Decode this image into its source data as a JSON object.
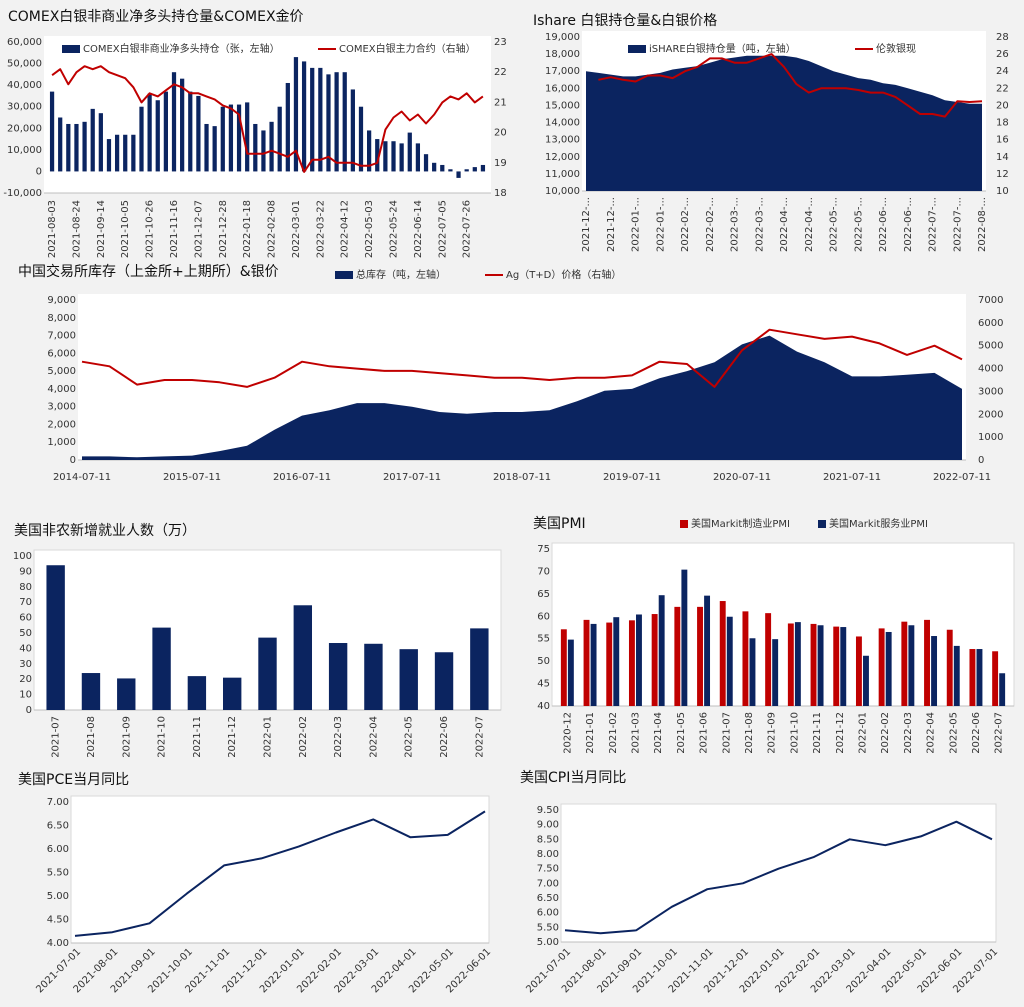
{
  "chart_data": [
    {
      "type": "combo",
      "title": "COMEX白银非商业净多头持仓量&COMEX金价",
      "categories": [
        "2021-08-03",
        null,
        null,
        "2021-08-24",
        null,
        null,
        "2021-09-14",
        null,
        null,
        "2021-10-05",
        null,
        null,
        "2021-10-26",
        null,
        null,
        "2021-11-16",
        null,
        null,
        "2021-12-07",
        null,
        null,
        "2021-12-28",
        null,
        null,
        "2022-01-18",
        null,
        null,
        "2022-02-08",
        null,
        null,
        "2022-03-01",
        null,
        null,
        "2022-03-22",
        null,
        null,
        "2022-04-12",
        null,
        null,
        "2022-05-03",
        null,
        null,
        "2022-05-24",
        null,
        null,
        "2022-06-14",
        null,
        null,
        "2022-07-05",
        null,
        null,
        "2022-07-26",
        null,
        null
      ],
      "series": [
        {
          "name": "COMEX白银非商业净多头持仓（张，左轴）",
          "type": "bar",
          "color": "#0b2460",
          "values": [
            37000,
            25000,
            22000,
            22000,
            23000,
            29000,
            27000,
            15000,
            17000,
            17000,
            17000,
            30000,
            36000,
            33000,
            37000,
            46000,
            43000,
            37000,
            35000,
            22000,
            21000,
            30000,
            31000,
            31000,
            32000,
            22000,
            19000,
            23000,
            30000,
            41000,
            53000,
            51000,
            48000,
            48000,
            45000,
            46000,
            46000,
            38000,
            30000,
            19000,
            15000,
            14000,
            14000,
            13000,
            18000,
            13000,
            8000,
            4000,
            3000,
            1000,
            -3000,
            1000,
            2000,
            3000
          ]
        },
        {
          "name": "COMEX白银主力合约（右轴）",
          "type": "line",
          "axis": "y2",
          "color": "#c00000",
          "values": [
            21.9,
            22.1,
            21.6,
            22.0,
            22.2,
            22.1,
            22.2,
            22.0,
            21.9,
            21.8,
            21.5,
            21.0,
            21.3,
            21.2,
            21.4,
            21.6,
            21.5,
            21.3,
            21.3,
            21.2,
            21.1,
            20.9,
            20.8,
            20.6,
            19.3,
            19.3,
            19.3,
            19.4,
            19.3,
            19.2,
            19.4,
            18.7,
            19.1,
            19.1,
            19.2,
            19.0,
            19.0,
            19.0,
            18.9,
            18.9,
            19.0,
            20.1,
            20.5,
            20.7,
            20.4,
            20.6,
            20.3,
            20.6,
            21.0,
            21.2,
            21.1,
            21.3,
            21.0,
            21.2
          ]
        }
      ],
      "ylim": [
        -10000,
        60000
      ],
      "yticks": [
        {
          "value": -10000,
          "label": "-10,000"
        },
        0,
        {
          "value": 10000,
          "label": "10,000"
        },
        {
          "value": 20000,
          "label": "20,000"
        },
        {
          "value": 30000,
          "label": "30,000"
        },
        {
          "value": 40000,
          "label": "40,000"
        },
        {
          "value": 50000,
          "label": "50,000"
        },
        {
          "value": 60000,
          "label": "60,000"
        }
      ],
      "y2lim": [
        18,
        23
      ],
      "y2ticks": [
        18,
        19,
        20,
        21,
        22,
        23
      ]
    },
    {
      "type": "combo",
      "title": "Ishare 白银持仓量&白银价格",
      "categories": [
        "2021-12-...",
        null,
        "2021-12-...",
        null,
        "2022-01-...",
        null,
        "2022-01-...",
        null,
        "2022-02-...",
        null,
        "2022-02-...",
        null,
        "2022-03-...",
        null,
        "2022-03-...",
        null,
        "2022-04-...",
        null,
        "2022-04-...",
        null,
        "2022-05-...",
        null,
        "2022-05-...",
        null,
        "2022-06-...",
        null,
        "2022-06-...",
        null,
        "2022-07-...",
        null,
        "2022-07-...",
        null,
        "2022-08-..."
      ],
      "series": [
        {
          "name": "iSHARE白银持仓量（吨，左轴）",
          "type": "area",
          "color": "#0b2460",
          "values": [
            17000,
            16900,
            16800,
            16700,
            16700,
            16800,
            16900,
            17100,
            17200,
            17300,
            17500,
            17700,
            17800,
            17900,
            17900,
            17900,
            17900,
            17800,
            17600,
            17300,
            17000,
            16800,
            16600,
            16500,
            16300,
            16200,
            16000,
            15800,
            15600,
            15300,
            15200,
            15100,
            15100
          ]
        },
        {
          "name": "伦敦银现",
          "type": "line",
          "axis": "y2",
          "color": "#c00000",
          "values": [
            null,
            23,
            23.3,
            23,
            22.8,
            23.5,
            23.5,
            23.2,
            24,
            24.5,
            25.5,
            25.5,
            25,
            25,
            25.5,
            26,
            24.5,
            22.5,
            21.5,
            22,
            22,
            22,
            21.8,
            21.5,
            21.5,
            21,
            20,
            19,
            19,
            18.7,
            20.5,
            20.4,
            20.5
          ]
        }
      ],
      "ylim": [
        10000,
        19000
      ],
      "yticks": [
        {
          "value": 10000,
          "label": "10,000"
        },
        {
          "value": 11000,
          "label": "11,000"
        },
        {
          "value": 12000,
          "label": "12,000"
        },
        {
          "value": 13000,
          "label": "13,000"
        },
        {
          "value": 14000,
          "label": "14,000"
        },
        {
          "value": 15000,
          "label": "15,000"
        },
        {
          "value": 16000,
          "label": "16,000"
        },
        {
          "value": 17000,
          "label": "17,000"
        },
        {
          "value": 18000,
          "label": "18,000"
        },
        {
          "value": 19000,
          "label": "19,000"
        }
      ],
      "y2lim": [
        10,
        28
      ],
      "y2ticks": [
        10,
        12,
        14,
        16,
        18,
        20,
        22,
        24,
        26,
        28
      ]
    },
    {
      "type": "combo",
      "title": "中国交易所库存（上金所+上期所）&银价",
      "categories": [
        "2014-07-11",
        null,
        null,
        null,
        "2015-07-11",
        null,
        null,
        null,
        "2016-07-11",
        null,
        null,
        null,
        "2017-07-11",
        null,
        null,
        null,
        "2018-07-11",
        null,
        null,
        null,
        "2019-07-11",
        null,
        null,
        null,
        "2020-07-11",
        null,
        null,
        null,
        "2021-07-11",
        null,
        null,
        null,
        "2022-07-11"
      ],
      "series": [
        {
          "name": "总库存（吨，左轴）",
          "type": "area",
          "color": "#0b2460",
          "values": [
            200,
            200,
            150,
            200,
            250,
            500,
            800,
            1700,
            2500,
            2800,
            3200,
            3200,
            3000,
            2700,
            2600,
            2700,
            2700,
            2800,
            3300,
            3900,
            4000,
            4600,
            5000,
            5500,
            6500,
            7000,
            6100,
            5500,
            4700,
            4700,
            4800,
            4900,
            4000
          ]
        },
        {
          "name": "Ag（T+D）价格（右轴）",
          "type": "line",
          "axis": "y2",
          "color": "#c00000",
          "values": [
            4300,
            4100,
            3300,
            3500,
            3500,
            3400,
            3200,
            3600,
            4300,
            4100,
            4000,
            3900,
            3900,
            3800,
            3700,
            3600,
            3600,
            3500,
            3600,
            3600,
            3700,
            4300,
            4200,
            3200,
            4800,
            5700,
            5500,
            5300,
            5400,
            5100,
            4600,
            5000,
            4400
          ]
        }
      ],
      "ylim": [
        0,
        9000
      ],
      "yticks": [
        0,
        {
          "value": 1000,
          "label": "1,000"
        },
        {
          "value": 2000,
          "label": "2,000"
        },
        {
          "value": 3000,
          "label": "3,000"
        },
        {
          "value": 4000,
          "label": "4,000"
        },
        {
          "value": 5000,
          "label": "5,000"
        },
        {
          "value": 6000,
          "label": "6,000"
        },
        {
          "value": 7000,
          "label": "7,000"
        },
        {
          "value": 8000,
          "label": "8,000"
        },
        {
          "value": 9000,
          "label": "9,000"
        }
      ],
      "y2lim": [
        0,
        7000
      ],
      "y2ticks": [
        0,
        1000,
        2000,
        3000,
        4000,
        5000,
        6000,
        7000
      ]
    },
    {
      "type": "bar",
      "title": "美国非农新增就业人数（万）",
      "categories": [
        "2021-07",
        "2021-08",
        "2021-09",
        "2021-10",
        "2021-11",
        "2021-12",
        "2022-01",
        "2022-02",
        "2022-03",
        "2022-04",
        "2022-05",
        "2022-06",
        "2022-07"
      ],
      "values": [
        94,
        24,
        20.5,
        53.5,
        22,
        21,
        47,
        68,
        43.5,
        43,
        39.5,
        37.5,
        53
      ],
      "color": "#0b2460",
      "ylim": [
        0,
        100
      ],
      "yticks": [
        0,
        10,
        20,
        30,
        40,
        50,
        60,
        70,
        80,
        90,
        100
      ]
    },
    {
      "type": "bar",
      "title": "美国PMI",
      "categories": [
        "2020-12",
        "2021-01",
        "2021-02",
        "2021-03",
        "2021-04",
        "2021-05",
        "2021-06",
        "2021-07",
        "2021-08",
        "2021-09",
        "2021-10",
        "2021-11",
        "2021-12",
        "2022-01",
        "2022-02",
        "2022-03",
        "2022-04",
        "2022-05",
        "2022-06",
        "2022-07"
      ],
      "series": [
        {
          "name": "美国Markit制造业PMI",
          "color": "#c00000",
          "values": [
            57.1,
            59.2,
            58.6,
            59.1,
            60.5,
            62.1,
            62.1,
            63.4,
            61.1,
            60.7,
            58.4,
            58.3,
            57.7,
            55.5,
            57.3,
            58.8,
            59.2,
            57.0,
            52.7,
            52.2
          ]
        },
        {
          "name": "美国Markit服务业PMI",
          "color": "#0b2460",
          "values": [
            54.8,
            58.3,
            59.8,
            60.4,
            64.7,
            70.4,
            64.6,
            59.9,
            55.1,
            54.9,
            58.7,
            58.0,
            57.6,
            51.2,
            56.5,
            58.0,
            55.6,
            53.4,
            52.7,
            47.3
          ]
        }
      ],
      "ylim": [
        40,
        75
      ],
      "yticks": [
        40,
        45,
        50,
        55,
        60,
        65,
        70,
        75
      ]
    },
    {
      "type": "line",
      "title": "美国PCE当月同比",
      "categories": [
        "2021-07-01",
        "2021-08-01",
        "2021-09-01",
        "2021-10-01",
        "2021-11-01",
        "2021-12-01",
        "2022-01-01",
        "2022-02-01",
        "2022-03-01",
        "2022-04-01",
        "2022-05-01",
        "2022-06-01"
      ],
      "values": [
        4.15,
        4.23,
        4.42,
        5.05,
        5.65,
        5.8,
        6.05,
        6.35,
        6.63,
        6.25,
        6.3,
        6.8
      ],
      "color": "#0b2460",
      "ylim": [
        4,
        7
      ],
      "yticks": [
        {
          "value": 4,
          "label": "4.00"
        },
        {
          "value": 4.5,
          "label": "4.50"
        },
        {
          "value": 5,
          "label": "5.00"
        },
        {
          "value": 5.5,
          "label": "5.50"
        },
        {
          "value": 6,
          "label": "6.00"
        },
        {
          "value": 6.5,
          "label": "6.50"
        },
        {
          "value": 7,
          "label": "7.00"
        }
      ]
    },
    {
      "type": "line",
      "title": "美国CPI当月同比",
      "categories": [
        "2021-07-01",
        "2021-08-01",
        "2021-09-01",
        "2021-10-01",
        "2021-11-01",
        "2021-12-01",
        "2022-01-01",
        "2022-02-01",
        "2022-03-01",
        "2022-04-01",
        "2022-05-01",
        "2022-06-01",
        "2022-07-01"
      ],
      "values": [
        5.4,
        5.3,
        5.4,
        6.2,
        6.8,
        7.0,
        7.5,
        7.9,
        8.5,
        8.3,
        8.6,
        9.1,
        8.5
      ],
      "color": "#0b2460",
      "ylim": [
        5,
        9.5
      ],
      "yticks": [
        {
          "value": 5,
          "label": "5.00"
        },
        {
          "value": 5.5,
          "label": "5.50"
        },
        {
          "value": 6,
          "label": "6.00"
        },
        {
          "value": 6.5,
          "label": "6.50"
        },
        {
          "value": 7,
          "label": "7.00"
        },
        {
          "value": 7.5,
          "label": "7.50"
        },
        {
          "value": 8,
          "label": "8.00"
        },
        {
          "value": 8.5,
          "label": "8.50"
        },
        {
          "value": 9,
          "label": "9.00"
        },
        {
          "value": 9.5,
          "label": "9.50"
        }
      ]
    }
  ]
}
